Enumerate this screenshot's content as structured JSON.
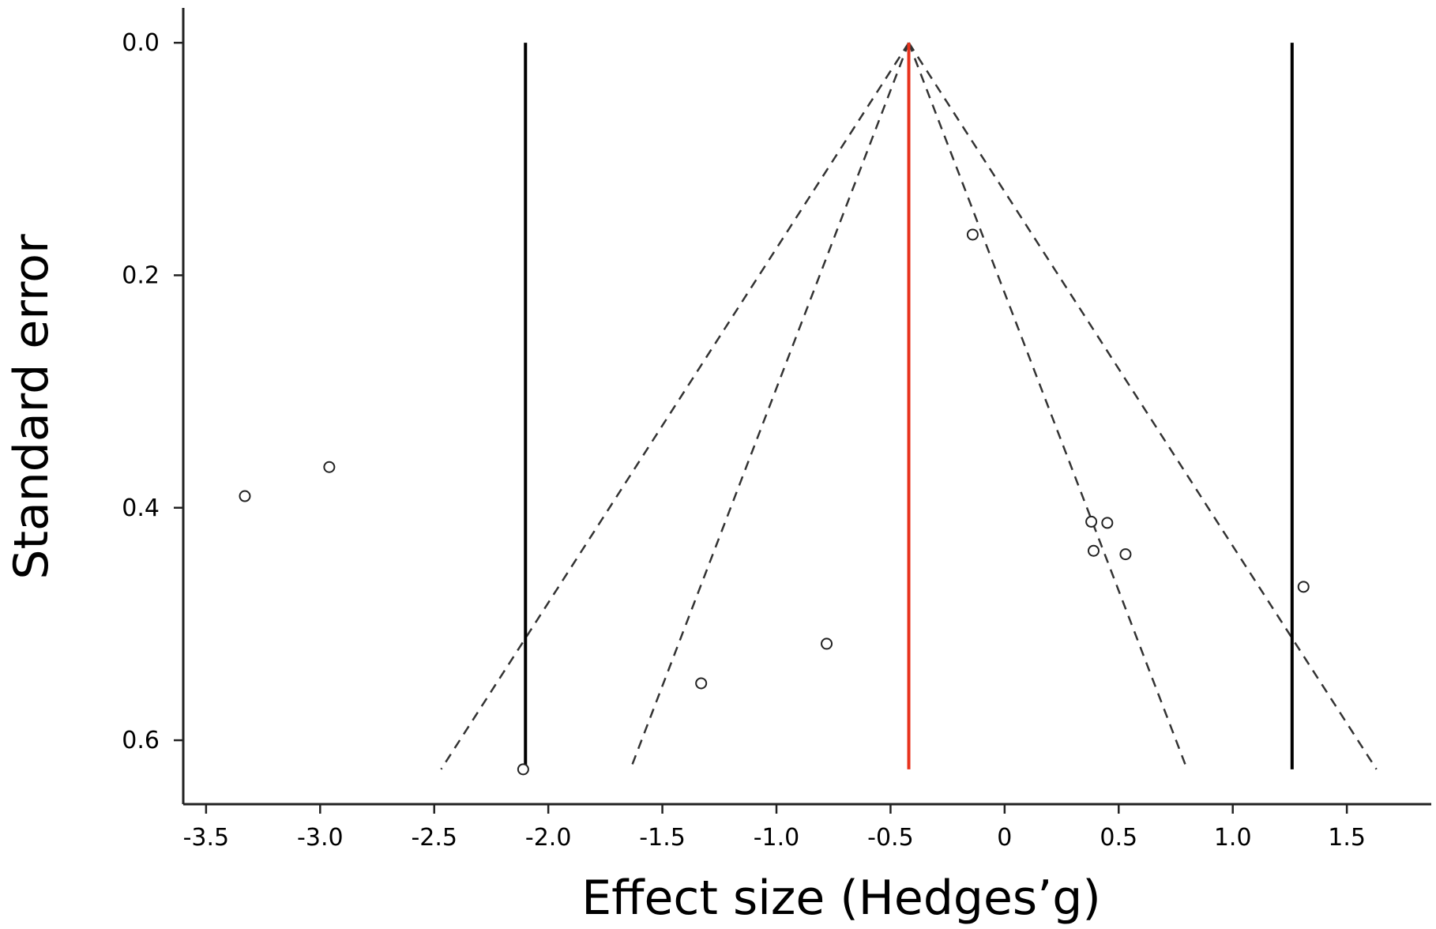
{
  "chart_data": {
    "type": "scatter",
    "subtype": "funnel-plot",
    "title": "",
    "xlabel": "Effect size (Hedges’g)",
    "ylabel": "Standard error",
    "xlim": [
      -3.6,
      1.87
    ],
    "ylim": [
      -0.03,
      0.655
    ],
    "y_inverted": true,
    "grid": false,
    "x_ticks": [
      {
        "value": -3.5,
        "label": "-3.5"
      },
      {
        "value": -3.0,
        "label": "-3.0"
      },
      {
        "value": -2.5,
        "label": "-2.5"
      },
      {
        "value": -2.0,
        "label": "-2.0"
      },
      {
        "value": -1.5,
        "label": "-1.5"
      },
      {
        "value": -1.0,
        "label": "-1.0"
      },
      {
        "value": -0.5,
        "label": "-0.5"
      },
      {
        "value": 0,
        "label": "0"
      },
      {
        "value": 0.5,
        "label": "0.5"
      },
      {
        "value": 1.0,
        "label": "1.0"
      },
      {
        "value": 1.5,
        "label": "1.5"
      }
    ],
    "y_ticks": [
      {
        "value": 0.0,
        "label": "0.0"
      },
      {
        "value": 0.2,
        "label": "0.2"
      },
      {
        "value": 0.4,
        "label": "0.4"
      },
      {
        "value": 0.6,
        "label": "0.6"
      }
    ],
    "pooled_effect": -0.42,
    "pooled_line_color": "#e8321c",
    "prediction_bounds": [
      -2.1,
      1.26
    ],
    "funnel_lines": [
      {
        "style": "dashed",
        "from": [
          -0.42,
          0.0
        ],
        "to": [
          -2.47,
          0.625
        ]
      },
      {
        "style": "dashed",
        "from": [
          -0.42,
          0.0
        ],
        "to": [
          -1.64,
          0.625
        ]
      },
      {
        "style": "dashed",
        "from": [
          -0.42,
          0.0
        ],
        "to": [
          0.8,
          0.625
        ]
      },
      {
        "style": "dashed",
        "from": [
          -0.42,
          0.0
        ],
        "to": [
          1.63,
          0.625
        ]
      }
    ],
    "points": [
      {
        "x": -0.14,
        "y": 0.165
      },
      {
        "x": -2.96,
        "y": 0.365
      },
      {
        "x": -3.33,
        "y": 0.39
      },
      {
        "x": 0.38,
        "y": 0.412
      },
      {
        "x": 0.45,
        "y": 0.413
      },
      {
        "x": 0.39,
        "y": 0.437
      },
      {
        "x": 0.53,
        "y": 0.44
      },
      {
        "x": 1.31,
        "y": 0.468
      },
      {
        "x": -0.78,
        "y": 0.517
      },
      {
        "x": -1.33,
        "y": 0.551
      },
      {
        "x": -2.11,
        "y": 0.625
      }
    ]
  }
}
